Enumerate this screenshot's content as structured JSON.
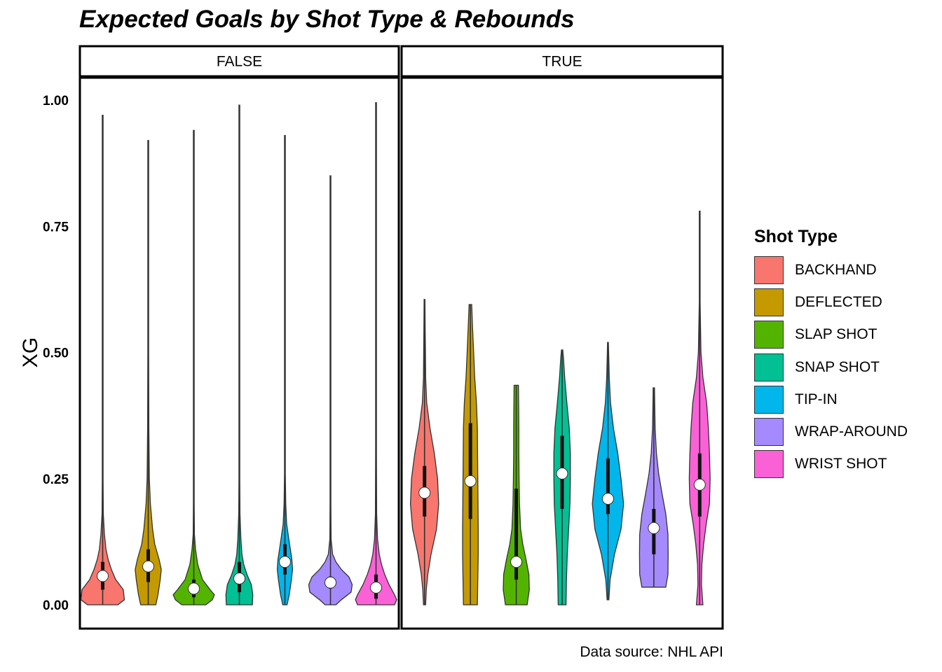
{
  "chart_data": {
    "type": "violin",
    "title": "Expected Goals by Shot Type & Rebounds",
    "caption": "Data source: NHL API",
    "ylabel": "XG",
    "xlabel": "",
    "ylim": [
      0,
      1
    ],
    "yticks": [
      {
        "value": 0,
        "label": "0.00"
      },
      {
        "value": 0.25,
        "label": "0.25"
      },
      {
        "value": 0.5,
        "label": "0.50"
      },
      {
        "value": 0.75,
        "label": "0.75"
      },
      {
        "value": 1,
        "label": "1.00"
      }
    ],
    "grid": false,
    "legend_position": "right",
    "legend_title": "Shot Type",
    "categories": [
      "BACKHAND",
      "DEFLECTED",
      "SLAP SHOT",
      "SNAP SHOT",
      "TIP-IN",
      "WRAP-AROUND",
      "WRIST SHOT"
    ],
    "colors": [
      "#F8766D",
      "#C49A00",
      "#53B400",
      "#00C094",
      "#00B6EB",
      "#A58AFF",
      "#FB61D7"
    ],
    "facets": [
      {
        "label": "FALSE",
        "series": [
          {
            "category": "BACKHAND",
            "min": 0.0,
            "max": 0.97,
            "q1": 0.03,
            "median": 0.057,
            "q3": 0.085,
            "density": [
              [
                0.0,
                0.7
              ],
              [
                0.01,
                1.0
              ],
              [
                0.03,
                0.95
              ],
              [
                0.05,
                0.6
              ],
              [
                0.07,
                0.4
              ],
              [
                0.09,
                0.25
              ],
              [
                0.11,
                0.15
              ],
              [
                0.14,
                0.08
              ],
              [
                0.18,
                0.03
              ],
              [
                0.25,
                0.015
              ],
              [
                0.4,
                0.01
              ],
              [
                0.6,
                0.008
              ],
              [
                0.97,
                0.008
              ]
            ]
          },
          {
            "category": "DEFLECTED",
            "min": 0.0,
            "max": 0.92,
            "q1": 0.045,
            "median": 0.076,
            "q3": 0.11,
            "density": [
              [
                0.0,
                0.35
              ],
              [
                0.02,
                0.45
              ],
              [
                0.05,
                0.55
              ],
              [
                0.07,
                0.6
              ],
              [
                0.09,
                0.5
              ],
              [
                0.12,
                0.3
              ],
              [
                0.15,
                0.2
              ],
              [
                0.2,
                0.1
              ],
              [
                0.25,
                0.05
              ],
              [
                0.35,
                0.03
              ],
              [
                0.5,
                0.015
              ],
              [
                0.92,
                0.01
              ]
            ]
          },
          {
            "category": "SLAP SHOT",
            "min": 0.0,
            "max": 0.94,
            "q1": 0.015,
            "median": 0.032,
            "q3": 0.05,
            "density": [
              [
                0.0,
                0.55
              ],
              [
                0.01,
                0.85
              ],
              [
                0.02,
                0.95
              ],
              [
                0.03,
                0.75
              ],
              [
                0.05,
                0.4
              ],
              [
                0.08,
                0.18
              ],
              [
                0.11,
                0.08
              ],
              [
                0.14,
                0.03
              ],
              [
                0.2,
                0.015
              ],
              [
                0.4,
                0.01
              ],
              [
                0.94,
                0.008
              ]
            ]
          },
          {
            "category": "SNAP SHOT",
            "min": 0.0,
            "max": 0.99,
            "q1": 0.025,
            "median": 0.052,
            "q3": 0.085,
            "density": [
              [
                0.0,
                0.6
              ],
              [
                0.02,
                0.62
              ],
              [
                0.04,
                0.55
              ],
              [
                0.06,
                0.35
              ],
              [
                0.08,
                0.2
              ],
              [
                0.1,
                0.12
              ],
              [
                0.13,
                0.07
              ],
              [
                0.18,
                0.03
              ],
              [
                0.25,
                0.012
              ],
              [
                0.5,
                0.01
              ],
              [
                0.99,
                0.008
              ]
            ]
          },
          {
            "category": "TIP-IN",
            "min": 0.0,
            "max": 0.93,
            "q1": 0.06,
            "median": 0.085,
            "q3": 0.12,
            "density": [
              [
                0.0,
                0.1
              ],
              [
                0.02,
                0.2
              ],
              [
                0.05,
                0.3
              ],
              [
                0.07,
                0.35
              ],
              [
                0.09,
                0.32
              ],
              [
                0.11,
                0.25
              ],
              [
                0.13,
                0.18
              ],
              [
                0.16,
                0.08
              ],
              [
                0.2,
                0.04
              ],
              [
                0.26,
                0.02
              ],
              [
                0.4,
                0.01
              ],
              [
                0.93,
                0.008
              ]
            ]
          },
          {
            "category": "WRAP-AROUND",
            "min": 0.0,
            "max": 0.85,
            "q1": 0.032,
            "median": 0.044,
            "q3": 0.056,
            "density": [
              [
                0.0,
                0.25
              ],
              [
                0.01,
                0.5
              ],
              [
                0.025,
                0.95
              ],
              [
                0.04,
                1.0
              ],
              [
                0.055,
                0.85
              ],
              [
                0.07,
                0.5
              ],
              [
                0.085,
                0.25
              ],
              [
                0.1,
                0.1
              ],
              [
                0.13,
                0.03
              ],
              [
                0.2,
                0.01
              ],
              [
                0.4,
                0.008
              ],
              [
                0.85,
                0.008
              ]
            ]
          },
          {
            "category": "WRIST SHOT",
            "min": 0.0,
            "max": 0.995,
            "q1": 0.012,
            "median": 0.034,
            "q3": 0.06,
            "density": [
              [
                0.0,
                0.85
              ],
              [
                0.01,
                0.95
              ],
              [
                0.02,
                0.85
              ],
              [
                0.04,
                0.6
              ],
              [
                0.06,
                0.4
              ],
              [
                0.08,
                0.25
              ],
              [
                0.1,
                0.15
              ],
              [
                0.13,
                0.07
              ],
              [
                0.18,
                0.03
              ],
              [
                0.3,
                0.012
              ],
              [
                0.6,
                0.008
              ],
              [
                0.995,
                0.008
              ]
            ]
          }
        ]
      },
      {
        "label": "TRUE",
        "series": [
          {
            "category": "BACKHAND",
            "min": 0.0,
            "max": 0.605,
            "q1": 0.175,
            "median": 0.222,
            "q3": 0.275,
            "density": [
              [
                0.0,
                0.05
              ],
              [
                0.03,
                0.08
              ],
              [
                0.06,
                0.15
              ],
              [
                0.1,
                0.3
              ],
              [
                0.15,
                0.55
              ],
              [
                0.2,
                0.65
              ],
              [
                0.25,
                0.6
              ],
              [
                0.3,
                0.45
              ],
              [
                0.35,
                0.25
              ],
              [
                0.4,
                0.1
              ],
              [
                0.45,
                0.05
              ],
              [
                0.5,
                0.04
              ],
              [
                0.55,
                0.03
              ],
              [
                0.605,
                0.02
              ]
            ]
          },
          {
            "category": "DEFLECTED",
            "min": 0.0,
            "max": 0.595,
            "q1": 0.17,
            "median": 0.245,
            "q3": 0.36,
            "density": [
              [
                0.0,
                0.32
              ],
              [
                0.05,
                0.34
              ],
              [
                0.1,
                0.36
              ],
              [
                0.15,
                0.36
              ],
              [
                0.2,
                0.35
              ],
              [
                0.25,
                0.34
              ],
              [
                0.3,
                0.33
              ],
              [
                0.35,
                0.32
              ],
              [
                0.4,
                0.28
              ],
              [
                0.45,
                0.2
              ],
              [
                0.5,
                0.15
              ],
              [
                0.55,
                0.1
              ],
              [
                0.595,
                0.06
              ]
            ]
          },
          {
            "category": "SLAP SHOT",
            "min": 0.0,
            "max": 0.435,
            "q1": 0.05,
            "median": 0.085,
            "q3": 0.23,
            "density": [
              [
                0.0,
                0.5
              ],
              [
                0.03,
                0.6
              ],
              [
                0.06,
                0.58
              ],
              [
                0.09,
                0.45
              ],
              [
                0.12,
                0.3
              ],
              [
                0.15,
                0.2
              ],
              [
                0.2,
                0.15
              ],
              [
                0.25,
                0.13
              ],
              [
                0.3,
                0.12
              ],
              [
                0.35,
                0.12
              ],
              [
                0.4,
                0.11
              ],
              [
                0.435,
                0.1
              ]
            ]
          },
          {
            "category": "SNAP SHOT",
            "min": 0.0,
            "max": 0.505,
            "q1": 0.19,
            "median": 0.26,
            "q3": 0.335,
            "density": [
              [
                0.0,
                0.18
              ],
              [
                0.05,
                0.2
              ],
              [
                0.1,
                0.24
              ],
              [
                0.15,
                0.3
              ],
              [
                0.2,
                0.36
              ],
              [
                0.25,
                0.38
              ],
              [
                0.3,
                0.38
              ],
              [
                0.35,
                0.33
              ],
              [
                0.4,
                0.22
              ],
              [
                0.45,
                0.12
              ],
              [
                0.49,
                0.06
              ],
              [
                0.505,
                0.03
              ]
            ]
          },
          {
            "category": "TIP-IN",
            "min": 0.01,
            "max": 0.52,
            "q1": 0.18,
            "median": 0.21,
            "q3": 0.29,
            "density": [
              [
                0.01,
                0.04
              ],
              [
                0.05,
                0.1
              ],
              [
                0.1,
                0.3
              ],
              [
                0.15,
                0.6
              ],
              [
                0.2,
                0.72
              ],
              [
                0.25,
                0.6
              ],
              [
                0.3,
                0.45
              ],
              [
                0.35,
                0.25
              ],
              [
                0.4,
                0.12
              ],
              [
                0.45,
                0.06
              ],
              [
                0.5,
                0.03
              ],
              [
                0.52,
                0.02
              ]
            ]
          },
          {
            "category": "WRAP-AROUND",
            "min": 0.035,
            "max": 0.43,
            "q1": 0.1,
            "median": 0.152,
            "q3": 0.19,
            "density": [
              [
                0.035,
                0.55
              ],
              [
                0.06,
                0.65
              ],
              [
                0.1,
                0.66
              ],
              [
                0.14,
                0.65
              ],
              [
                0.18,
                0.55
              ],
              [
                0.22,
                0.38
              ],
              [
                0.26,
                0.22
              ],
              [
                0.3,
                0.12
              ],
              [
                0.35,
                0.06
              ],
              [
                0.4,
                0.04
              ],
              [
                0.43,
                0.03
              ]
            ]
          },
          {
            "category": "WRIST SHOT",
            "min": 0.0,
            "max": 0.78,
            "q1": 0.175,
            "median": 0.238,
            "q3": 0.3,
            "density": [
              [
                0.0,
                0.15
              ],
              [
                0.04,
                0.08
              ],
              [
                0.08,
                0.1
              ],
              [
                0.12,
                0.18
              ],
              [
                0.16,
                0.3
              ],
              [
                0.2,
                0.45
              ],
              [
                0.25,
                0.48
              ],
              [
                0.3,
                0.45
              ],
              [
                0.35,
                0.4
              ],
              [
                0.4,
                0.32
              ],
              [
                0.45,
                0.15
              ],
              [
                0.5,
                0.06
              ],
              [
                0.6,
                0.02
              ],
              [
                0.78,
                0.01
              ]
            ]
          }
        ]
      }
    ]
  }
}
